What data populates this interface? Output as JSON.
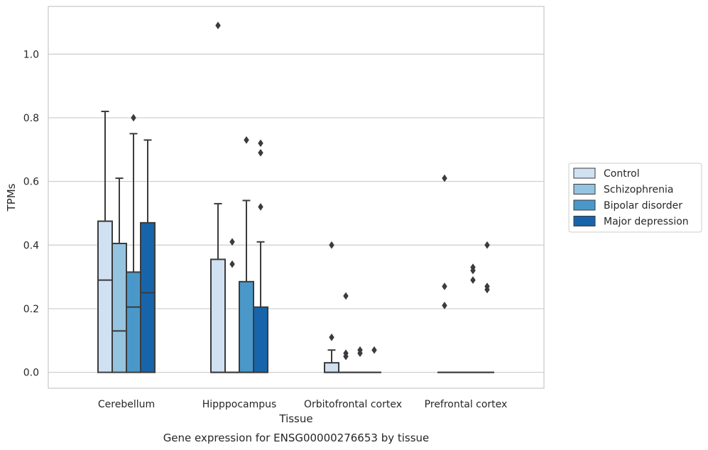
{
  "chart_data": {
    "type": "box",
    "xlabel": "Tissue",
    "ylabel": "TPMs",
    "caption": "Gene expression for ENSG00000276653 by tissue",
    "categories": [
      "Cerebellum",
      "Hipppocampus",
      "Orbitofrontal cortex",
      "Prefrontal cortex"
    ],
    "ylim": [
      -0.05,
      1.15
    ],
    "yticks": [
      "0.0",
      "0.2",
      "0.4",
      "0.6",
      "0.8",
      "1.0"
    ],
    "grid": true,
    "legend_position": "right",
    "series": [
      {
        "name": "Control",
        "color": "#d0e1f2",
        "boxes": [
          {
            "q1": 0.0,
            "median": 0.29,
            "q3": 0.475,
            "whisker_low": 0.0,
            "whisker_high": 0.82,
            "outliers": []
          },
          {
            "q1": 0.0,
            "median": 0.0,
            "q3": 0.355,
            "whisker_low": 0.0,
            "whisker_high": 0.53,
            "outliers": [
              1.09
            ]
          },
          {
            "q1": 0.0,
            "median": 0.0,
            "q3": 0.03,
            "whisker_low": 0.0,
            "whisker_high": 0.07,
            "outliers": [
              0.4,
              0.11
            ]
          },
          {
            "q1": 0.0,
            "median": 0.0,
            "q3": 0.0,
            "whisker_low": 0.0,
            "whisker_high": 0.0,
            "outliers": [
              0.61,
              0.27,
              0.21
            ]
          }
        ]
      },
      {
        "name": "Schizophrenia",
        "color": "#94c4df",
        "boxes": [
          {
            "q1": 0.0,
            "median": 0.13,
            "q3": 0.405,
            "whisker_low": 0.0,
            "whisker_high": 0.61,
            "outliers": []
          },
          {
            "q1": 0.0,
            "median": 0.0,
            "q3": 0.0,
            "whisker_low": 0.0,
            "whisker_high": 0.0,
            "outliers": [
              0.41,
              0.34
            ]
          },
          {
            "q1": 0.0,
            "median": 0.0,
            "q3": 0.0,
            "whisker_low": 0.0,
            "whisker_high": 0.0,
            "outliers": [
              0.24,
              0.06,
              0.05
            ]
          },
          {
            "q1": 0.0,
            "median": 0.0,
            "q3": 0.0,
            "whisker_low": 0.0,
            "whisker_high": 0.0,
            "outliers": []
          }
        ]
      },
      {
        "name": "Bipolar disorder",
        "color": "#4a98c9",
        "boxes": [
          {
            "q1": 0.0,
            "median": 0.205,
            "q3": 0.315,
            "whisker_low": 0.0,
            "whisker_high": 0.75,
            "outliers": [
              0.8
            ]
          },
          {
            "q1": 0.0,
            "median": 0.0,
            "q3": 0.285,
            "whisker_low": 0.0,
            "whisker_high": 0.54,
            "outliers": [
              0.73
            ]
          },
          {
            "q1": 0.0,
            "median": 0.0,
            "q3": 0.0,
            "whisker_low": 0.0,
            "whisker_high": 0.0,
            "outliers": [
              0.07,
              0.06
            ]
          },
          {
            "q1": 0.0,
            "median": 0.0,
            "q3": 0.0,
            "whisker_low": 0.0,
            "whisker_high": 0.0,
            "outliers": [
              0.33,
              0.32,
              0.29
            ]
          }
        ]
      },
      {
        "name": "Major depression",
        "color": "#1764ab",
        "boxes": [
          {
            "q1": 0.0,
            "median": 0.25,
            "q3": 0.47,
            "whisker_low": 0.0,
            "whisker_high": 0.73,
            "outliers": []
          },
          {
            "q1": 0.0,
            "median": 0.0,
            "q3": 0.205,
            "whisker_low": 0.0,
            "whisker_high": 0.41,
            "outliers": [
              0.72,
              0.69,
              0.52
            ]
          },
          {
            "q1": 0.0,
            "median": 0.0,
            "q3": 0.0,
            "whisker_low": 0.0,
            "whisker_high": 0.0,
            "outliers": [
              0.07
            ]
          },
          {
            "q1": 0.0,
            "median": 0.0,
            "q3": 0.0,
            "whisker_low": 0.0,
            "whisker_high": 0.0,
            "outliers": [
              0.4,
              0.27,
              0.26
            ]
          }
        ]
      }
    ]
  },
  "colors": {
    "grid": "#cccccc",
    "frame": "#cccccc",
    "box_edge": "#3b3b3b",
    "text": "#262626"
  }
}
